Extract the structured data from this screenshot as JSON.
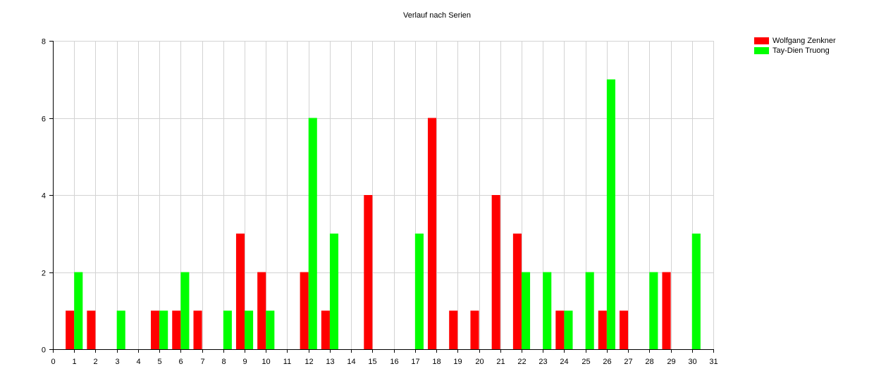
{
  "chart_data": {
    "type": "bar",
    "title": "Verlauf nach Serien",
    "xlabel": "",
    "ylabel": "",
    "xlim": [
      0,
      31
    ],
    "ylim": [
      0,
      8
    ],
    "x_ticks": [
      0,
      1,
      2,
      3,
      4,
      5,
      6,
      7,
      8,
      9,
      10,
      11,
      12,
      13,
      14,
      15,
      16,
      17,
      18,
      19,
      20,
      21,
      22,
      23,
      24,
      25,
      26,
      27,
      28,
      29,
      30,
      31
    ],
    "y_ticks": [
      0,
      2,
      4,
      6,
      8
    ],
    "grid": true,
    "legend_position": "top-right",
    "series": [
      {
        "name": "Wolfgang Zenkner",
        "color": "#ff0000",
        "points": [
          {
            "x": 1,
            "y": 1
          },
          {
            "x": 2,
            "y": 1
          },
          {
            "x": 5,
            "y": 1
          },
          {
            "x": 6,
            "y": 1
          },
          {
            "x": 7,
            "y": 1
          },
          {
            "x": 9,
            "y": 3
          },
          {
            "x": 10,
            "y": 2
          },
          {
            "x": 12,
            "y": 2
          },
          {
            "x": 13,
            "y": 1
          },
          {
            "x": 15,
            "y": 4
          },
          {
            "x": 18,
            "y": 6
          },
          {
            "x": 19,
            "y": 1
          },
          {
            "x": 20,
            "y": 1
          },
          {
            "x": 21,
            "y": 4
          },
          {
            "x": 22,
            "y": 3
          },
          {
            "x": 24,
            "y": 1
          },
          {
            "x": 26,
            "y": 1
          },
          {
            "x": 27,
            "y": 1
          },
          {
            "x": 29,
            "y": 2
          }
        ]
      },
      {
        "name": "Tay-Dien Truong",
        "color": "#00ff00",
        "points": [
          {
            "x": 1,
            "y": 2
          },
          {
            "x": 3,
            "y": 1
          },
          {
            "x": 5,
            "y": 1
          },
          {
            "x": 6,
            "y": 2
          },
          {
            "x": 8,
            "y": 1
          },
          {
            "x": 9,
            "y": 1
          },
          {
            "x": 10,
            "y": 1
          },
          {
            "x": 12,
            "y": 6
          },
          {
            "x": 13,
            "y": 3
          },
          {
            "x": 17,
            "y": 3
          },
          {
            "x": 22,
            "y": 2
          },
          {
            "x": 23,
            "y": 2
          },
          {
            "x": 24,
            "y": 1
          },
          {
            "x": 25,
            "y": 2
          },
          {
            "x": 26,
            "y": 7
          },
          {
            "x": 28,
            "y": 2
          },
          {
            "x": 30,
            "y": 3
          }
        ]
      }
    ]
  }
}
